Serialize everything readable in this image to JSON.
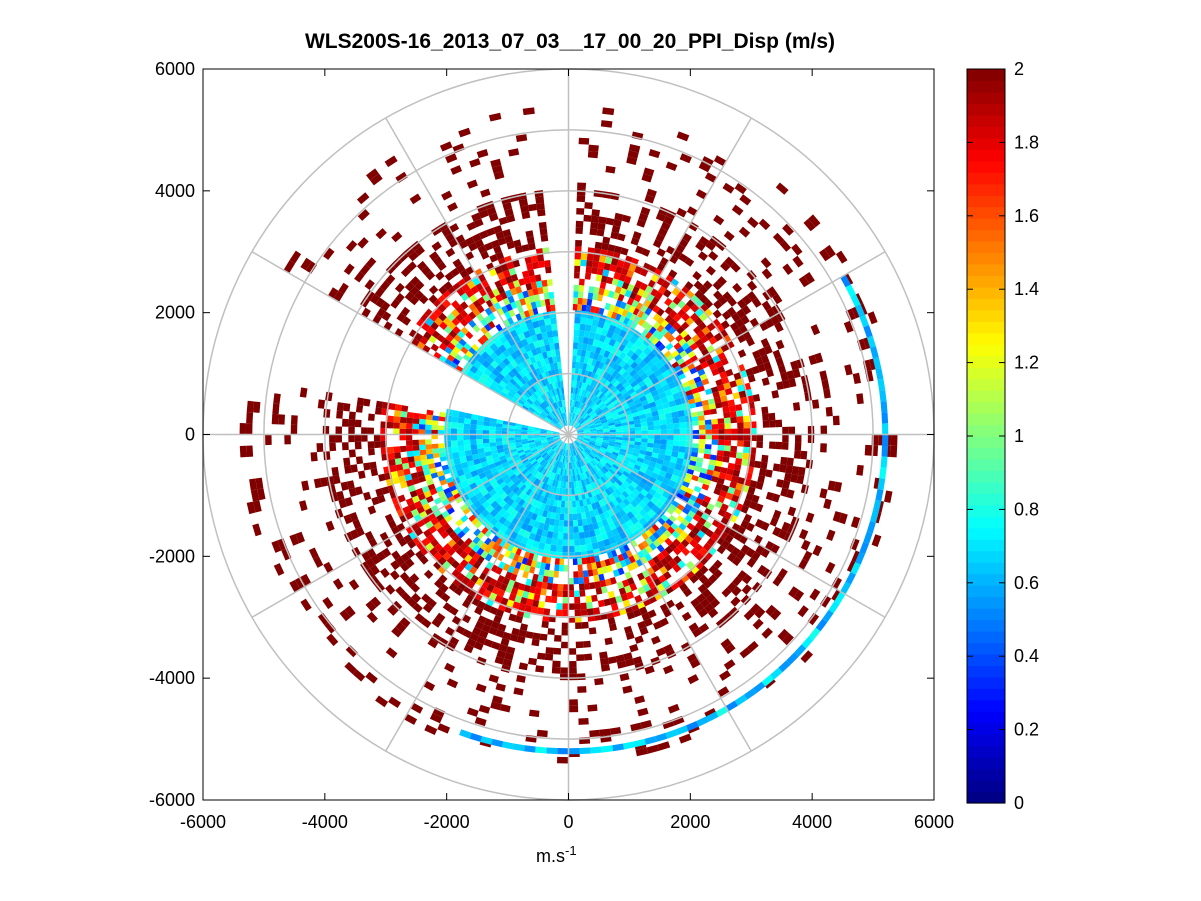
{
  "chart_data": {
    "type": "heatmap",
    "subtype": "polar-ppi",
    "title": "WLS200S-16_2013_07_03__17_00_20_PPI_Disp (m/s)",
    "xlabel": "m.s",
    "xlabel_exponent": "-1",
    "ylabel": "",
    "xlim": [
      -6000,
      6000
    ],
    "ylim": [
      -6000,
      6000
    ],
    "xticks": [
      -6000,
      -4000,
      -2000,
      0,
      2000,
      4000,
      6000
    ],
    "yticks": [
      -6000,
      -4000,
      -2000,
      0,
      2000,
      4000,
      6000
    ],
    "xtick_labels": [
      "-6000",
      "-4000",
      "-2000",
      "0",
      "2000",
      "4000",
      "6000"
    ],
    "ytick_labels": [
      "-6000",
      "-4000",
      "-2000",
      "0",
      "2000",
      "4000",
      "6000"
    ],
    "polar_rings": [
      1000,
      2000,
      3000,
      4000,
      5000,
      6000
    ],
    "polar_spokes_deg": [
      0,
      30,
      60,
      90,
      120,
      150,
      180,
      210,
      240,
      270,
      300,
      330
    ],
    "colorbar": {
      "min": 0,
      "max": 2,
      "ticks": [
        0,
        0.2,
        0.4,
        0.6,
        0.8,
        1,
        1.2,
        1.4,
        1.6,
        1.8,
        2
      ],
      "tick_labels": [
        "0",
        "0.2",
        "0.4",
        "0.6",
        "0.8",
        "1",
        "1.2",
        "1.4",
        "1.6",
        "1.8",
        "2"
      ],
      "colormap": "jet"
    },
    "value_by_range": [
      {
        "range_m": [
          150,
          2000
        ],
        "typical_value": 0.65
      },
      {
        "range_m": [
          2000,
          2400
        ],
        "typical_value": 0.95
      },
      {
        "range_m": [
          2400,
          3000
        ],
        "typical_value": 1.85
      },
      {
        "range_m": [
          3000,
          4000
        ],
        "typical_value": 2.0
      },
      {
        "range_m": [
          4000,
          5300
        ],
        "typical_value": 2.0
      }
    ],
    "gap_azimuth_deg": [
      {
        "from": -6,
        "to": 0
      },
      {
        "from": 280,
        "to": 298
      }
    ],
    "outer_arc": {
      "range_m": 5150,
      "from_deg": 60,
      "to_deg": 200,
      "typical_value": 0.65
    }
  }
}
